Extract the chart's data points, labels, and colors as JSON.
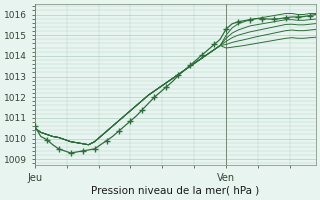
{
  "bg_color": "#e8f4f0",
  "grid_color": "#b0d0c0",
  "line_color": "#2d6e3a",
  "marker_color": "#2d6e3a",
  "title": "Pression niveau de la mer( hPa )",
  "xlabel_jeu": "Jeu",
  "xlabel_ven": "Ven",
  "ylim": [
    1008.7,
    1016.5
  ],
  "yticks": [
    1009,
    1010,
    1011,
    1012,
    1013,
    1014,
    1015,
    1016
  ],
  "xlim": [
    0,
    47
  ],
  "x_jeu": 0,
  "x_ven": 32,
  "series": [
    [
      1010.5,
      1010.3,
      1010.2,
      1010.1,
      1010.05,
      1009.95,
      1009.85,
      1009.8,
      1009.75,
      1009.7,
      1009.85,
      1010.1,
      1010.35,
      1010.6,
      1010.85,
      1011.1,
      1011.35,
      1011.6,
      1011.85,
      1012.1,
      1012.3,
      1012.5,
      1012.7,
      1012.9,
      1013.1,
      1013.3,
      1013.5,
      1013.7,
      1013.9,
      1014.1,
      1014.3,
      1014.5,
      1015.0,
      1015.35,
      1015.55,
      1015.65,
      1015.75,
      1015.8,
      1015.85,
      1015.9,
      1015.95,
      1016.0,
      1016.05,
      1016.05,
      1016.0,
      1016.0,
      1016.05,
      1016.05
    ],
    [
      1010.5,
      1010.3,
      1010.2,
      1010.1,
      1010.05,
      1009.95,
      1009.85,
      1009.8,
      1009.75,
      1009.7,
      1009.85,
      1010.1,
      1010.35,
      1010.6,
      1010.85,
      1011.1,
      1011.35,
      1011.6,
      1011.85,
      1012.1,
      1012.3,
      1012.5,
      1012.7,
      1012.9,
      1013.1,
      1013.3,
      1013.5,
      1013.7,
      1013.9,
      1014.1,
      1014.3,
      1014.5,
      1014.85,
      1015.1,
      1015.25,
      1015.35,
      1015.45,
      1015.5,
      1015.55,
      1015.6,
      1015.65,
      1015.7,
      1015.75,
      1015.75,
      1015.72,
      1015.72,
      1015.75,
      1015.78
    ],
    [
      1010.5,
      1010.3,
      1010.2,
      1010.1,
      1010.05,
      1009.95,
      1009.85,
      1009.8,
      1009.75,
      1009.7,
      1009.85,
      1010.1,
      1010.35,
      1010.6,
      1010.85,
      1011.1,
      1011.35,
      1011.6,
      1011.85,
      1012.1,
      1012.3,
      1012.5,
      1012.7,
      1012.9,
      1013.1,
      1013.3,
      1013.5,
      1013.7,
      1013.9,
      1014.1,
      1014.3,
      1014.5,
      1014.7,
      1014.88,
      1015.0,
      1015.08,
      1015.16,
      1015.22,
      1015.28,
      1015.34,
      1015.4,
      1015.46,
      1015.52,
      1015.53,
      1015.5,
      1015.5,
      1015.53,
      1015.56
    ],
    [
      1010.5,
      1010.3,
      1010.2,
      1010.1,
      1010.05,
      1009.95,
      1009.85,
      1009.8,
      1009.75,
      1009.7,
      1009.85,
      1010.1,
      1010.35,
      1010.6,
      1010.85,
      1011.1,
      1011.35,
      1011.6,
      1011.85,
      1012.1,
      1012.3,
      1012.5,
      1012.7,
      1012.9,
      1013.1,
      1013.3,
      1013.5,
      1013.7,
      1013.9,
      1014.1,
      1014.3,
      1014.5,
      1014.55,
      1014.65,
      1014.72,
      1014.78,
      1014.85,
      1014.92,
      1014.98,
      1015.04,
      1015.1,
      1015.16,
      1015.22,
      1015.25,
      1015.22,
      1015.22,
      1015.25,
      1015.28
    ],
    [
      1010.5,
      1010.3,
      1010.2,
      1010.1,
      1010.05,
      1009.95,
      1009.85,
      1009.8,
      1009.75,
      1009.7,
      1009.85,
      1010.1,
      1010.35,
      1010.6,
      1010.85,
      1011.1,
      1011.35,
      1011.6,
      1011.85,
      1012.1,
      1012.3,
      1012.5,
      1012.7,
      1012.9,
      1013.1,
      1013.3,
      1013.5,
      1013.7,
      1013.9,
      1014.1,
      1014.3,
      1014.5,
      1014.38,
      1014.42,
      1014.46,
      1014.5,
      1014.55,
      1014.6,
      1014.65,
      1014.7,
      1014.75,
      1014.8,
      1014.85,
      1014.88,
      1014.85,
      1014.85,
      1014.88,
      1014.9
    ]
  ],
  "marked_series": [
    [
      1010.6,
      1010.1,
      1009.95,
      1009.7,
      1009.5,
      1009.4,
      1009.3,
      1009.35,
      1009.4,
      1009.45,
      1009.5,
      1009.7,
      1009.9,
      1010.1,
      1010.35,
      1010.6,
      1010.85,
      1011.1,
      1011.4,
      1011.7,
      1012.0,
      1012.25,
      1012.5,
      1012.75,
      1013.05,
      1013.3,
      1013.55,
      1013.8,
      1014.05,
      1014.3,
      1014.55,
      1014.8,
      1015.3,
      1015.55,
      1015.65,
      1015.7,
      1015.75,
      1015.8,
      1015.8,
      1015.78,
      1015.78,
      1015.8,
      1015.85,
      1015.88,
      1015.88,
      1015.9,
      1015.95,
      1016.0
    ]
  ],
  "marker_x_step": 2
}
